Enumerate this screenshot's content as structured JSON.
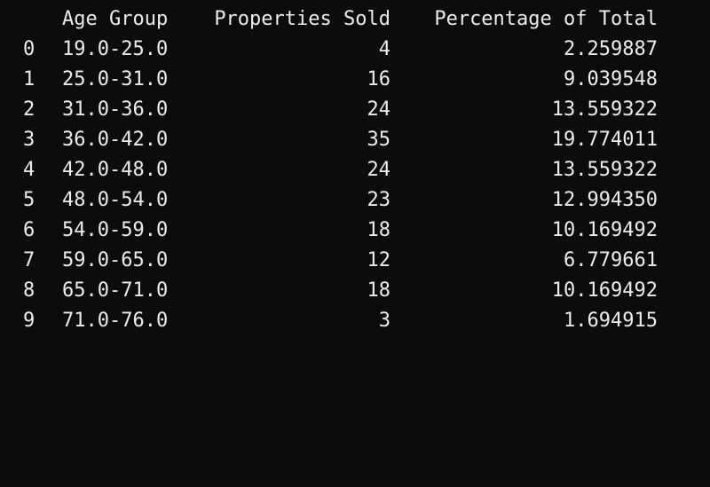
{
  "table": {
    "columns": [
      "Age Group",
      "Properties Sold",
      "Percentage of Total"
    ],
    "rows": [
      {
        "index": "0",
        "age_group": "19.0-25.0",
        "properties_sold": "4",
        "percentage": "2.259887"
      },
      {
        "index": "1",
        "age_group": "25.0-31.0",
        "properties_sold": "16",
        "percentage": "9.039548"
      },
      {
        "index": "2",
        "age_group": "31.0-36.0",
        "properties_sold": "24",
        "percentage": "13.559322"
      },
      {
        "index": "3",
        "age_group": "36.0-42.0",
        "properties_sold": "35",
        "percentage": "19.774011"
      },
      {
        "index": "4",
        "age_group": "42.0-48.0",
        "properties_sold": "24",
        "percentage": "13.559322"
      },
      {
        "index": "5",
        "age_group": "48.0-54.0",
        "properties_sold": "23",
        "percentage": "12.994350"
      },
      {
        "index": "6",
        "age_group": "54.0-59.0",
        "properties_sold": "18",
        "percentage": "10.169492"
      },
      {
        "index": "7",
        "age_group": "59.0-65.0",
        "properties_sold": "12",
        "percentage": "6.779661"
      },
      {
        "index": "8",
        "age_group": "65.0-71.0",
        "properties_sold": "18",
        "percentage": "10.169492"
      },
      {
        "index": "9",
        "age_group": "71.0-76.0",
        "properties_sold": "3",
        "percentage": "1.694915"
      }
    ]
  },
  "colors": {
    "background": "#0c0c0c",
    "text": "#ececec"
  }
}
